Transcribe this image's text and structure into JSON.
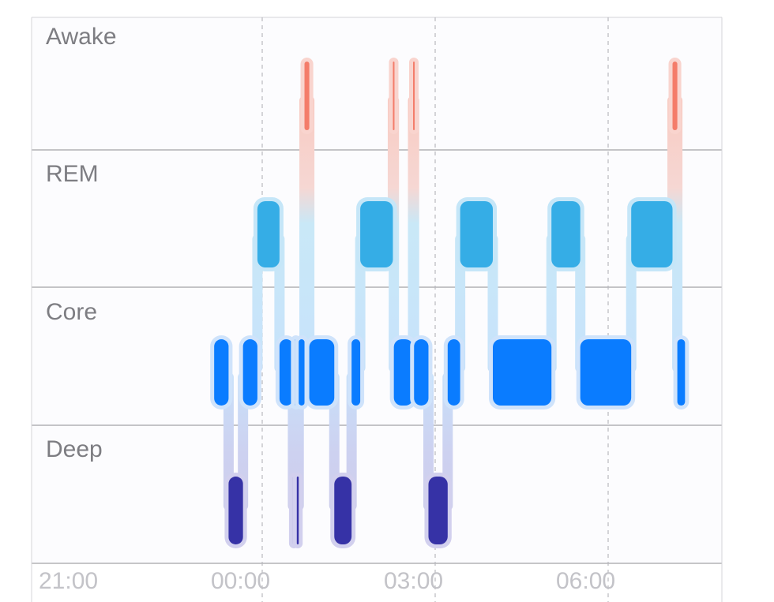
{
  "chart_data": {
    "type": "hypnogram",
    "title": "",
    "stages": [
      "Awake",
      "REM",
      "Core",
      "Deep"
    ],
    "x_ticks": [
      "21:00",
      "00:00",
      "03:00",
      "06:00"
    ],
    "x_range": [
      "21:00",
      "08:00"
    ],
    "grid": "dashed vertical lines at 3-hour ticks, solid horizontal stage separators",
    "colors": {
      "Awake": "#f47c6a",
      "REM": "#35ade6",
      "Core": "#0a7cff",
      "Deep": "#3632a6"
    },
    "segments": [
      {
        "stage": "Core",
        "start": "23:10",
        "end": "23:25"
      },
      {
        "stage": "Deep",
        "start": "23:25",
        "end": "23:40"
      },
      {
        "stage": "Core",
        "start": "23:40",
        "end": "23:55"
      },
      {
        "stage": "REM",
        "start": "23:55",
        "end": "00:18"
      },
      {
        "stage": "Core",
        "start": "00:18",
        "end": "00:32"
      },
      {
        "stage": "Deep",
        "start": "00:32",
        "end": "00:34"
      },
      {
        "stage": "Core",
        "start": "00:34",
        "end": "00:36"
      },
      {
        "stage": "Deep",
        "start": "00:36",
        "end": "00:38"
      },
      {
        "stage": "Core",
        "start": "00:38",
        "end": "00:44"
      },
      {
        "stage": "Awake",
        "start": "00:44",
        "end": "00:49"
      },
      {
        "stage": "Core",
        "start": "00:49",
        "end": "01:15"
      },
      {
        "stage": "Deep",
        "start": "01:15",
        "end": "01:33"
      },
      {
        "stage": "Core",
        "start": "01:33",
        "end": "01:42"
      },
      {
        "stage": "REM",
        "start": "01:42",
        "end": "02:16"
      },
      {
        "stage": "Awake",
        "start": "02:16",
        "end": "02:17"
      },
      {
        "stage": "Core",
        "start": "02:17",
        "end": "02:37"
      },
      {
        "stage": "Awake",
        "start": "02:37",
        "end": "02:38"
      },
      {
        "stage": "Core",
        "start": "02:38",
        "end": "02:53"
      },
      {
        "stage": "Deep",
        "start": "02:53",
        "end": "03:13"
      },
      {
        "stage": "Core",
        "start": "03:13",
        "end": "03:26"
      },
      {
        "stage": "REM",
        "start": "03:26",
        "end": "04:00"
      },
      {
        "stage": "Core",
        "start": "04:00",
        "end": "05:01"
      },
      {
        "stage": "REM",
        "start": "05:01",
        "end": "05:31"
      },
      {
        "stage": "Core",
        "start": "05:31",
        "end": "06:24"
      },
      {
        "stage": "REM",
        "start": "06:24",
        "end": "07:07"
      },
      {
        "stage": "Awake",
        "start": "07:07",
        "end": "07:12"
      },
      {
        "stage": "Core",
        "start": "07:12",
        "end": "07:20"
      }
    ]
  }
}
